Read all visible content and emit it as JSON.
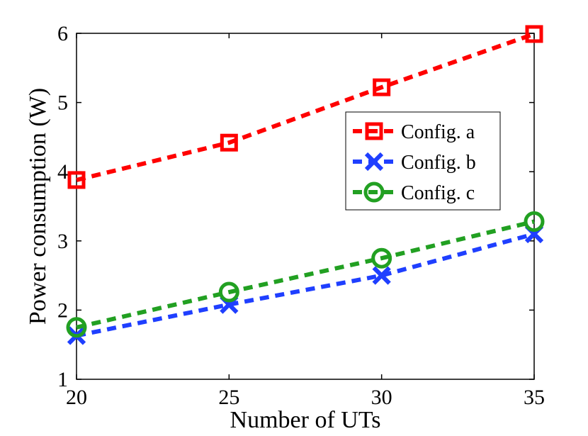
{
  "chart_data": {
    "type": "line",
    "title": "",
    "xlabel": "Number of UTs",
    "ylabel": "Power consumption (W)",
    "x": [
      20,
      25,
      30,
      35
    ],
    "xlim": [
      20,
      35
    ],
    "ylim": [
      1,
      6
    ],
    "xticks": [
      20,
      25,
      30,
      35
    ],
    "yticks": [
      1,
      2,
      3,
      4,
      5,
      6
    ],
    "grid": false,
    "legend_position": "upper-right",
    "series": [
      {
        "name": "Config. a",
        "marker": "square",
        "color": "#ff0000",
        "values": [
          3.88,
          4.42,
          5.22,
          5.99
        ]
      },
      {
        "name": "Config. b",
        "marker": "x",
        "color": "#1f3fff",
        "values": [
          1.63,
          2.08,
          2.5,
          3.1
        ]
      },
      {
        "name": "Config. c",
        "marker": "circle",
        "color": "#22a022",
        "values": [
          1.75,
          2.26,
          2.75,
          3.28
        ]
      }
    ]
  }
}
